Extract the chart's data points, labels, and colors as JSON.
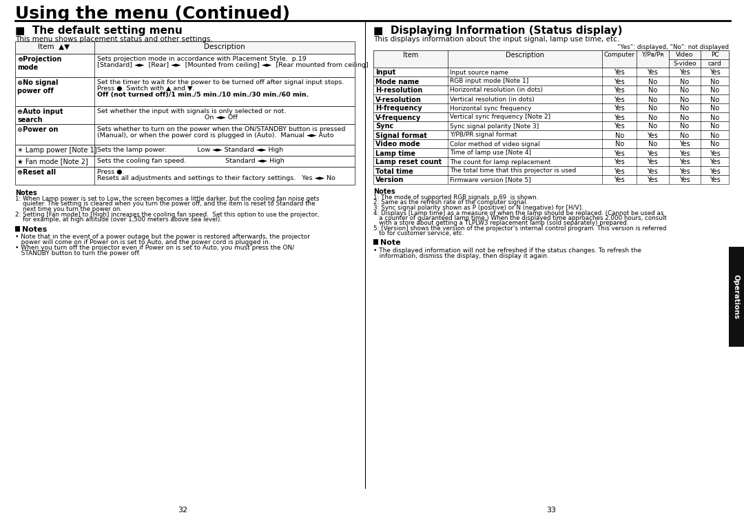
{
  "page_bg": "#ffffff",
  "page_title": "Using the menu (Continued)",
  "left_section_title": "The default setting menu",
  "left_section_subtitle": "This menu shows placement status and other settings.",
  "right_section_title": "Displaying Information (Status display)",
  "right_section_subtitle": "This displays information about the input signal, lamp use time, etc.",
  "page_numbers": [
    "32",
    "33"
  ],
  "sidebar_text": "Operations",
  "sidebar_color": "#1a1a1a",
  "right_table_rows": [
    [
      "Input",
      "Input source name",
      "Yes",
      "Yes",
      "Yes",
      "Yes"
    ],
    [
      "Mode name",
      "RGB input mode [Note 1]",
      "Yes",
      "No",
      "No",
      "No"
    ],
    [
      "H-resolution",
      "Horizontal resolution (in dots)",
      "Yes",
      "No",
      "No",
      "No"
    ],
    [
      "V-resolution",
      "Vertical resolution (in dots)",
      "Yes",
      "No",
      "No",
      "No"
    ],
    [
      "H-frequency",
      "Horizontal sync frequency",
      "Yes",
      "No",
      "No",
      "No"
    ],
    [
      "V-frequency",
      "Vertical sync frequency [Note 2]",
      "Yes",
      "No",
      "No",
      "No"
    ],
    [
      "Sync",
      "Sync signal polarity [Note 3]",
      "Yes",
      "No",
      "No",
      "No"
    ],
    [
      "Signal format",
      "Y/PB/PR signal format",
      "No",
      "Yes",
      "No",
      "No"
    ],
    [
      "Video mode",
      "Color method of video signal",
      "No",
      "No",
      "Yes",
      "No"
    ],
    [
      "Lamp time",
      "Time of lamp use [Note 4]",
      "Yes",
      "Yes",
      "Yes",
      "Yes"
    ],
    [
      "Lamp reset count",
      "The count for lamp replacement",
      "Yes",
      "Yes",
      "Yes",
      "Yes"
    ],
    [
      "Total time",
      "The total time that this projector is used",
      "Yes",
      "Yes",
      "Yes",
      "Yes"
    ],
    [
      "Version",
      "Firmware version [Note 5]",
      "Yes",
      "Yes",
      "Yes",
      "Yes"
    ]
  ]
}
